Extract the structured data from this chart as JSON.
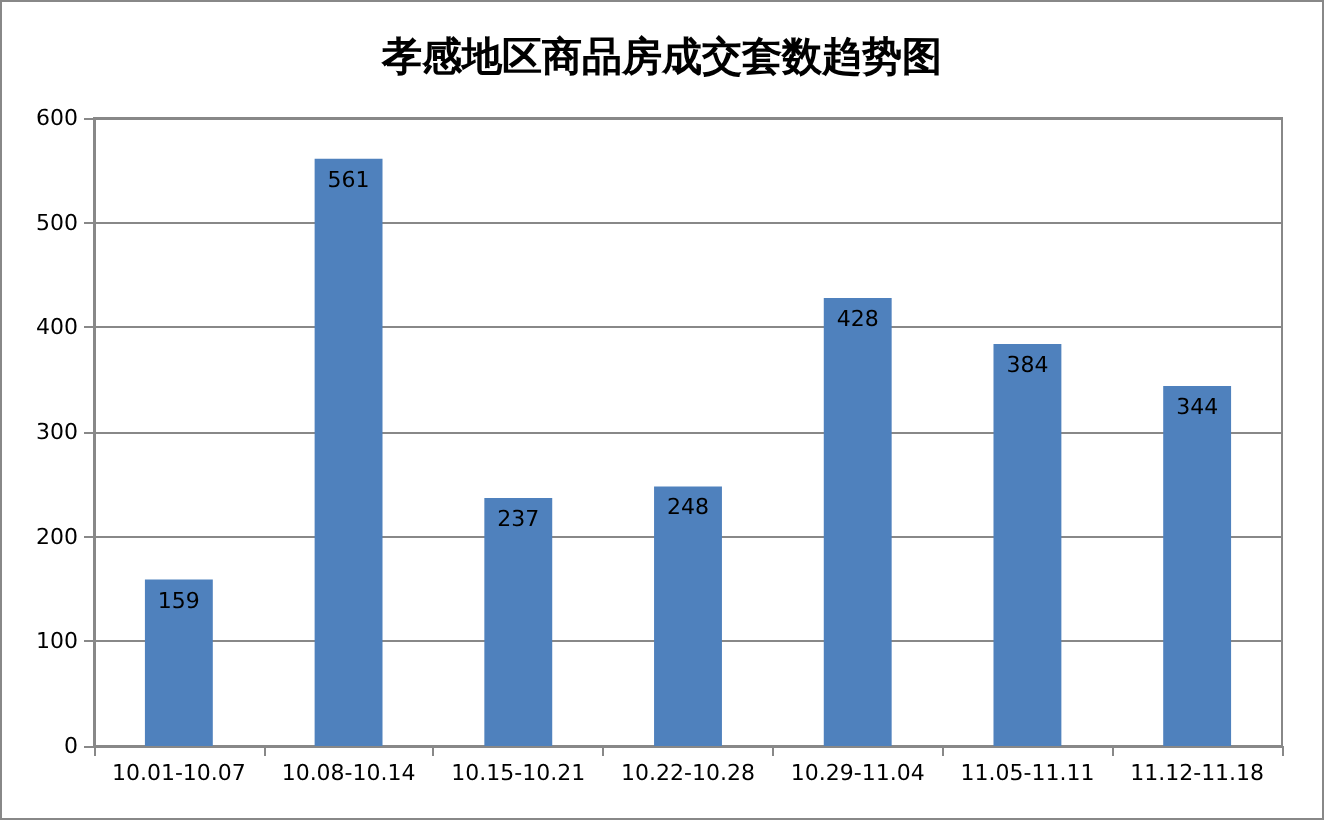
{
  "chart_data": {
    "type": "bar",
    "title": "孝感地区商品房成交套数趋势图",
    "categories": [
      "10.01-10.07",
      "10.08-10.14",
      "10.15-10.21",
      "10.22-10.28",
      "10.29-11.04",
      "11.05-11.11",
      "11.12-11.18"
    ],
    "values": [
      159,
      561,
      237,
      248,
      428,
      384,
      344
    ],
    "color": "#4f81bd",
    "ylim": [
      0,
      600
    ],
    "yticks": [
      0,
      100,
      200,
      300,
      400,
      500,
      600
    ],
    "grid": "y",
    "data_labels": true
  }
}
